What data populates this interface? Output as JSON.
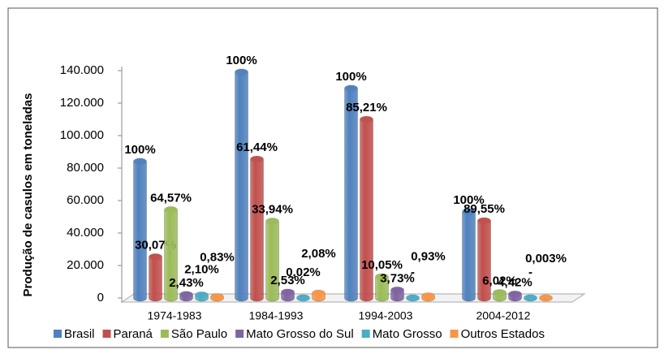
{
  "chart_data": {
    "type": "bar3d",
    "y_label": "Produção de casulos  em toneladas",
    "categories": [
      "1974-1983",
      "1984-1993",
      "1994-2003",
      "2004-2012"
    ],
    "ylim": [
      0,
      140000
    ],
    "yticks": [
      0,
      {
        "value": 20000,
        "label": "20.000"
      },
      {
        "value": 40000,
        "label": "40.000"
      },
      {
        "value": 60000,
        "label": "60.000"
      },
      {
        "value": 80000,
        "label": "80.000"
      },
      {
        "value": 100000,
        "label": "100.000"
      },
      {
        "value": 120000,
        "label": "120.000"
      },
      {
        "value": 140000,
        "label": "140.000"
      }
    ],
    "series": [
      {
        "name": "Brasil",
        "color": "#4f81bd",
        "values": [
          84000,
          139000,
          129000,
          53000
        ],
        "percent_labels": [
          "100%",
          "100%",
          "100%",
          "100%"
        ]
      },
      {
        "name": "Paraná",
        "color": "#c0504d",
        "values": [
          25260,
          85400,
          109900,
          47460
        ],
        "percent_labels": [
          "30,07%",
          "61,44%",
          "85,21%",
          "89,55%"
        ]
      },
      {
        "name": "São Paulo",
        "color": "#9bbb59",
        "values": [
          54240,
          47180,
          12960,
          3190
        ],
        "percent_labels": [
          "64,57%",
          "33,94%",
          "10,05%",
          "6,02%"
        ]
      },
      {
        "name": "Mato Grosso do Sul",
        "color": "#8064a2",
        "values": [
          2040,
          3520,
          4810,
          2340
        ],
        "percent_labels": [
          "2,43%",
          "2,53%",
          "3,73%",
          "4,42%"
        ]
      },
      {
        "name": "Mato Grosso",
        "color": "#4bacc6",
        "values": [
          1760,
          28,
          0,
          0
        ],
        "percent_labels": [
          "2,10%",
          "0,02%",
          "-",
          "-"
        ]
      },
      {
        "name": "Outros Estados",
        "color": "#f79646",
        "values": [
          700,
          2890,
          1200,
          2
        ],
        "percent_labels": [
          "0,83%",
          "2,08%",
          "0,93%",
          "0,003%"
        ]
      }
    ]
  }
}
